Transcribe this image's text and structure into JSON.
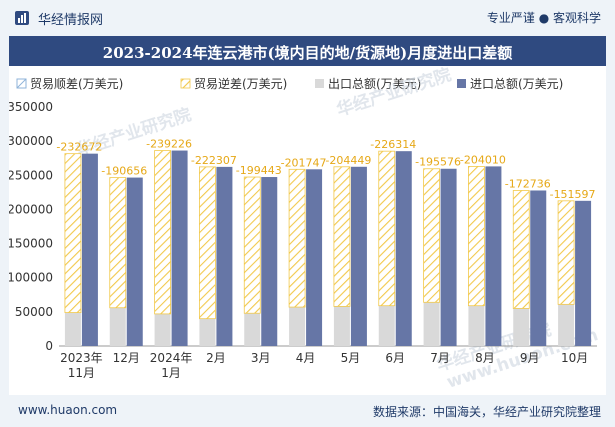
{
  "header": {
    "brand": "华经情报网",
    "tagline": "专业严谨 ● 客观科学"
  },
  "title": "2023-2024年连云港市(境内目的地/货源地)月度进出口差额",
  "footer": {
    "site": "www.huaon.com",
    "source": "数据来源：中国海关，华经产业研究院整理"
  },
  "watermarks": [
    "华经产业研究院",
    "华经产业研究院",
    "华经产业研究院",
    "www.huaon.com"
  ],
  "colors": {
    "header_bar": "#2f4a80",
    "import": "#6676a6",
    "export": "#d9d9d9",
    "deficit": "#f2c94c",
    "surplus": "#8fb3d9",
    "label": "#e6a817"
  },
  "chart_data": {
    "type": "bar",
    "categories": [
      "2023年\n11月",
      "12月",
      "2024年\n1月",
      "2月",
      "3月",
      "4月",
      "5月",
      "6月",
      "7月",
      "8月",
      "9月",
      "10月"
    ],
    "series": [
      {
        "name": "贸易顺差(万美元)",
        "values": [
          0,
          0,
          0,
          0,
          0,
          0,
          0,
          0,
          0,
          0,
          0,
          0
        ]
      },
      {
        "name": "贸易逆差(万美元)",
        "values": [
          232672,
          190656,
          239226,
          222307,
          199443,
          201747,
          204449,
          226314,
          195576,
          204010,
          172736,
          151597
        ]
      },
      {
        "name": "出口总额(万美元)",
        "values": [
          49000,
          56000,
          47000,
          40000,
          48000,
          57000,
          58000,
          59000,
          64000,
          59000,
          55000,
          61000
        ]
      },
      {
        "name": "进口总额(万美元)",
        "values": [
          281672,
          246656,
          286226,
          262307,
          247443,
          258747,
          262449,
          285314,
          259576,
          263010,
          227736,
          212597
        ]
      }
    ],
    "data_labels": [
      "-232672",
      "-190656",
      "-239226",
      "-222307",
      "-199443",
      "-201747",
      "-204449",
      "-226314",
      "-195576",
      "-204010",
      "-172736",
      "-151597"
    ],
    "yticks": [
      "0",
      "50000",
      "100000",
      "150000",
      "200000",
      "250000",
      "300000",
      "350000"
    ],
    "ylim": [
      0,
      350000
    ],
    "legend_position": "top",
    "grid": false
  }
}
